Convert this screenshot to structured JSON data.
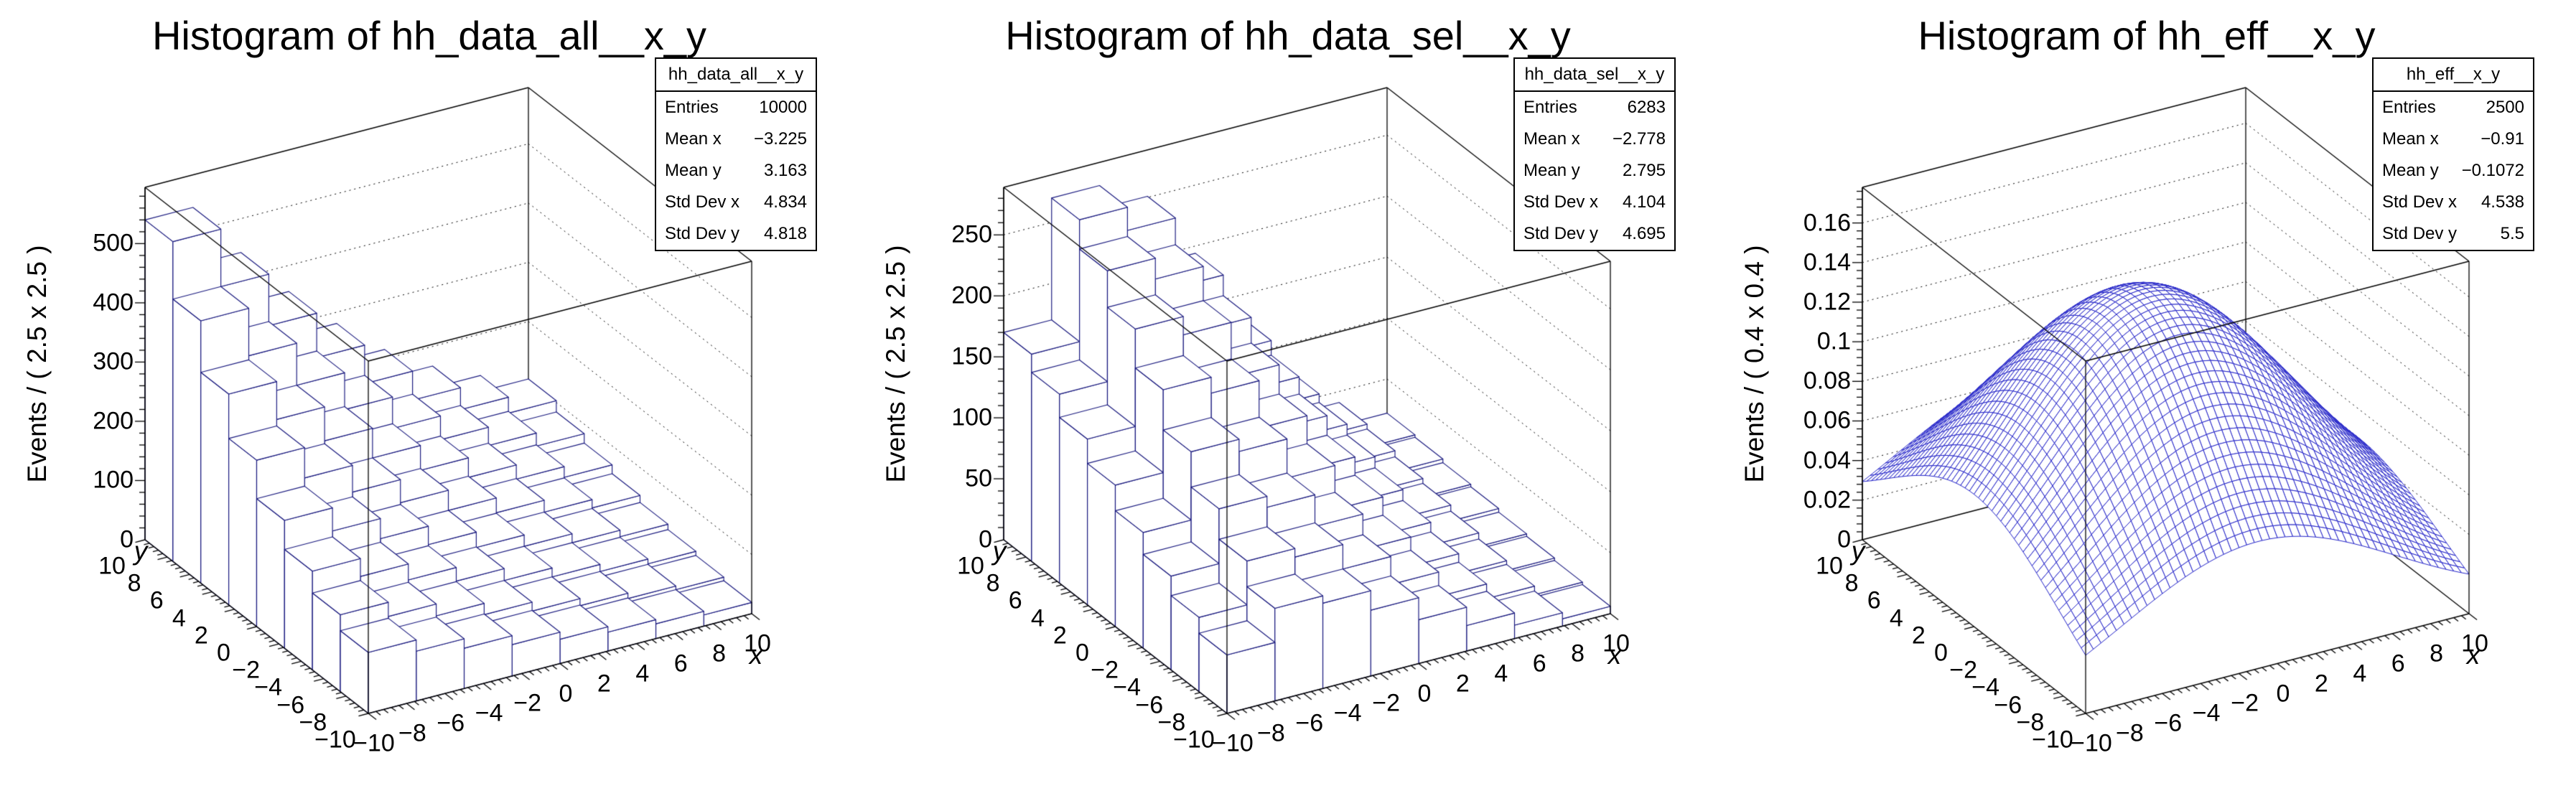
{
  "pads": [
    {
      "title": "Histogram of hh_data_all__x_y",
      "stats": {
        "title": "hh_data_all__x_y",
        "rows": [
          {
            "label": "Entries",
            "value": "10000"
          },
          {
            "label": "Mean x",
            "value": "−3.225"
          },
          {
            "label": "Mean y",
            "value": "3.163"
          },
          {
            "label": "Std Dev x",
            "value": "4.834"
          },
          {
            "label": "Std Dev y",
            "value": "4.818"
          }
        ]
      }
    },
    {
      "title": "Histogram of hh_data_sel__x_y",
      "stats": {
        "title": "hh_data_sel__x_y",
        "rows": [
          {
            "label": "Entries",
            "value": "6283"
          },
          {
            "label": "Mean x",
            "value": "−2.778"
          },
          {
            "label": "Mean y",
            "value": "2.795"
          },
          {
            "label": "Std Dev x",
            "value": "4.104"
          },
          {
            "label": "Std Dev y",
            "value": "4.695"
          }
        ]
      }
    },
    {
      "title": "Histogram of hh_eff__x_y",
      "stats": {
        "title": "hh_eff__x_y",
        "rows": [
          {
            "label": "Entries",
            "value": "2500"
          },
          {
            "label": "Mean x",
            "value": "−0.91"
          },
          {
            "label": "Mean y",
            "value": "−0.1072"
          },
          {
            "label": "Std Dev x",
            "value": "4.538"
          },
          {
            "label": "Std Dev y",
            "value": "5.5"
          }
        ]
      }
    }
  ],
  "chart_data": [
    {
      "type": "bar3d-lego",
      "title": "Histogram of hh_data_all__x_y",
      "hist_name": "hh_data_all__x_y",
      "xlabel": "x",
      "ylabel": "y",
      "zlabel": "Events / ( 2.5 x 2.5 )",
      "xlim": [
        -10,
        10
      ],
      "ylim": [
        -10,
        10
      ],
      "zlim": [
        0,
        595
      ],
      "x_bin_width": 2.5,
      "y_bin_width": 2.5,
      "x_ticks": [
        -10,
        -8,
        -6,
        -4,
        -2,
        0,
        2,
        4,
        6,
        8,
        10
      ],
      "y_ticks": [
        -10,
        -8,
        -6,
        -4,
        -2,
        0,
        2,
        4,
        6,
        8,
        10
      ],
      "xy_minor_step": 0.4,
      "z_ticks": [
        0,
        100,
        200,
        300,
        400,
        500
      ],
      "z_minor_step": 20,
      "z_axis_top": 595,
      "line_color": "#18187e",
      "grid_on": true,
      "bar_heights_rows_y_min_to_max": [
        [
          103,
          84,
          68,
          53,
          41,
          32,
          25,
          19
        ],
        [
          130,
          106,
          86,
          67,
          52,
          40,
          31,
          25
        ],
        [
          167,
          137,
          110,
          87,
          67,
          52,
          40,
          32
        ],
        [
          216,
          177,
          143,
          112,
          86,
          67,
          52,
          41
        ],
        [
          281,
          230,
          185,
          146,
          112,
          87,
          67,
          53
        ],
        [
          356,
          292,
          235,
          185,
          143,
          110,
          86,
          68
        ],
        [
          443,
          363,
          292,
          230,
          177,
          137,
          106,
          84
        ],
        [
          540,
          443,
          356,
          281,
          216,
          167,
          130,
          103
        ]
      ]
    },
    {
      "type": "bar3d-lego",
      "title": "Histogram of hh_data_sel__x_y",
      "hist_name": "hh_data_sel__x_y",
      "xlabel": "x",
      "ylabel": "y",
      "zlabel": "Events / ( 2.5 x 2.5 )",
      "xlim": [
        -10,
        10
      ],
      "ylim": [
        -10,
        10
      ],
      "zlim": [
        0,
        289
      ],
      "x_bin_width": 2.5,
      "y_bin_width": 2.5,
      "x_ticks": [
        -10,
        -8,
        -6,
        -4,
        -2,
        0,
        2,
        4,
        6,
        8,
        10
      ],
      "y_ticks": [
        -10,
        -8,
        -6,
        -4,
        -2,
        0,
        2,
        4,
        6,
        8,
        10
      ],
      "xy_minor_step": 0.4,
      "z_ticks": [
        0,
        50,
        100,
        150,
        200,
        250
      ],
      "z_minor_step": 10,
      "z_axis_top": 289,
      "line_color": "#18187e",
      "grid_on": true,
      "bar_heights_rows_y_min_to_max": [
        [
          48,
          76,
          70,
          54,
          36,
          21,
          11,
          6
        ],
        [
          61,
          97,
          90,
          70,
          47,
          27,
          15,
          8
        ],
        [
          77,
          122,
          113,
          87,
          58,
          34,
          18,
          10
        ],
        [
          95,
          151,
          141,
          109,
          73,
          42,
          23,
          12
        ],
        [
          116,
          184,
          171,
          132,
          88,
          51,
          28,
          15
        ],
        [
          136,
          216,
          201,
          156,
          104,
          60,
          32,
          17
        ],
        [
          155,
          246,
          229,
          177,
          118,
          69,
          37,
          20
        ],
        [
          170,
          270,
          251,
          194,
          130,
          76,
          41,
          22
        ]
      ]
    },
    {
      "type": "surface3d-mesh",
      "title": "Histogram of hh_eff__x_y",
      "hist_name": "hh_eff__x_y",
      "xlabel": "x",
      "ylabel": "y",
      "zlabel": "Events / ( 0.4 x 0.4 )",
      "xlim": [
        -10,
        10
      ],
      "ylim": [
        -10,
        10
      ],
      "zlim": [
        0,
        0.178
      ],
      "x_bin_width": 0.4,
      "y_bin_width": 0.4,
      "x_ticks": [
        -10,
        -8,
        -6,
        -4,
        -2,
        0,
        2,
        4,
        6,
        8,
        10
      ],
      "y_ticks": [
        -10,
        -8,
        -6,
        -4,
        -2,
        0,
        2,
        4,
        6,
        8,
        10
      ],
      "xy_minor_step": 0.4,
      "z_ticks": [
        0,
        0.02,
        0.04,
        0.06,
        0.08,
        0.1,
        0.12,
        0.14,
        0.16
      ],
      "z_minor_step": 0.004,
      "z_axis_top": 0.178,
      "line_color": "#2424c8",
      "grid_on": true,
      "grid_n": 50,
      "surface_model": {
        "form": "gaussian",
        "amplitude": 0.146,
        "center_x": -1,
        "sigma_x": 7.2,
        "center_y": 0,
        "sigma_y": 7.8
      }
    }
  ]
}
